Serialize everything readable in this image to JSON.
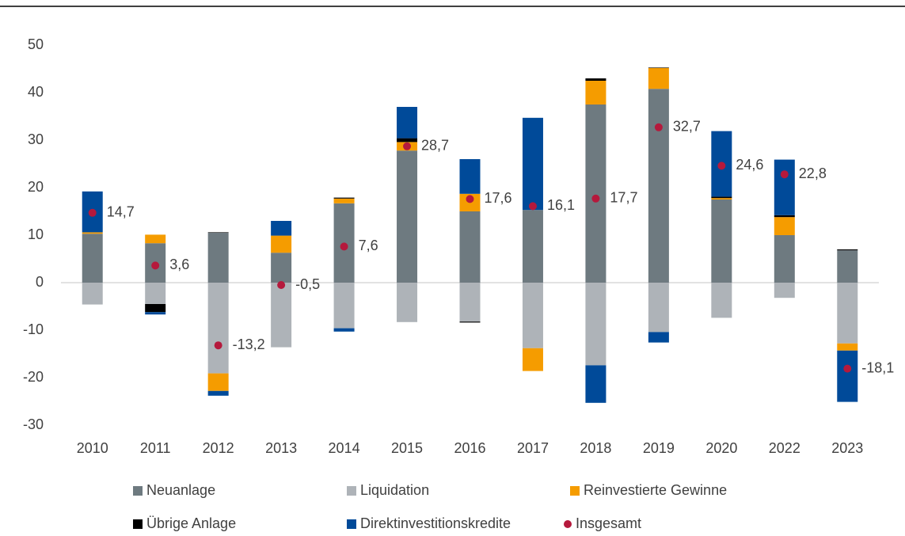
{
  "chart_data": {
    "type": "bar",
    "stacked": true,
    "categories": [
      "2010",
      "2011",
      "2012",
      "2013",
      "2014",
      "2015",
      "2016",
      "2017",
      "2018",
      "2019",
      "2020",
      "2022",
      "2023"
    ],
    "series": [
      {
        "name": "Neuanlage",
        "color": "#6e7a80",
        "values": [
          10.3,
          8.3,
          10.5,
          6.3,
          16.7,
          27.8,
          15.0,
          15.3,
          37.5,
          40.8,
          17.5,
          10.0,
          6.8
        ]
      },
      {
        "name": "Liquidation",
        "color": "#aeb3b8",
        "values": [
          -4.6,
          -4.5,
          -19.1,
          -13.6,
          -9.6,
          -8.3,
          -8.2,
          -13.8,
          -17.4,
          -10.4,
          -7.4,
          -3.2,
          -12.8
        ]
      },
      {
        "name": "Reinvestierte Gewinne",
        "color": "#f59c00",
        "values": [
          0.3,
          1.8,
          -3.7,
          3.6,
          1.0,
          1.8,
          3.7,
          -4.8,
          5.0,
          4.4,
          0.3,
          3.8,
          -1.5
        ]
      },
      {
        "name": "Übrige Anlage",
        "color": "#000000",
        "values": [
          0,
          -1.7,
          0.1,
          0,
          0.2,
          0.8,
          -0.2,
          0,
          0.5,
          0.1,
          0.3,
          0.4,
          0.2
        ]
      },
      {
        "name": "Direktinvestitionskredite",
        "color": "#004a99",
        "values": [
          8.6,
          -0.5,
          -1.0,
          3.1,
          -0.7,
          6.6,
          7.3,
          19.4,
          -7.9,
          -2.2,
          13.8,
          11.7,
          -10.8
        ]
      },
      {
        "name": "Insgesamt",
        "color": "#b5193c",
        "type": "scatter",
        "values": [
          14.7,
          3.6,
          -13.2,
          -0.5,
          7.6,
          28.7,
          17.6,
          16.1,
          17.7,
          32.7,
          24.6,
          22.8,
          -18.1
        ],
        "value_labels": [
          "14,7",
          "3,6",
          "-13,2",
          "-0,5",
          "7,6",
          "28,7",
          "17,6",
          "16,1",
          "17,7",
          "32,7",
          "24,6",
          "22,8",
          "-18,1"
        ]
      }
    ],
    "ylim": [
      -30,
      50
    ],
    "yticks": [
      -30,
      -20,
      -10,
      0,
      10,
      20,
      30,
      40,
      50
    ],
    "grid": false
  }
}
